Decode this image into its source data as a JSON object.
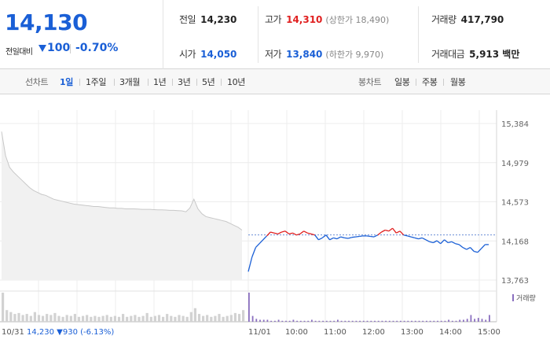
{
  "summary": {
    "price": "14,130",
    "change_label": "전일대비",
    "change_value": "100",
    "change_pct": "-0.70%"
  },
  "stats": {
    "prev_close": {
      "label": "전일",
      "value": "14,230"
    },
    "high": {
      "label": "고가",
      "value": "14,310",
      "sub": "(상한가 18,490)"
    },
    "volume": {
      "label": "거래량",
      "value": "417,790"
    },
    "open": {
      "label": "시가",
      "value": "14,050"
    },
    "low": {
      "label": "저가",
      "value": "13,840",
      "sub": "(하한가 9,970)"
    },
    "amount": {
      "label": "거래대금",
      "value": "5,913 백만"
    }
  },
  "tabs": {
    "line_label": "선차트",
    "line_items": [
      "1일",
      "1주일",
      "3개월",
      "1년",
      "3년",
      "5년",
      "10년"
    ],
    "candle_label": "봉차트",
    "candle_items": [
      "일봉",
      "주봉",
      "월봉"
    ]
  },
  "colors": {
    "up": "#e02020",
    "down": "#1a5fd6",
    "prev_day": "#c8c8c8"
  },
  "chart_data": {
    "type": "line",
    "y_ticks": [
      "15,384",
      "14,979",
      "14,573",
      "14,168",
      "13,763"
    ],
    "ylim": [
      13763,
      15384
    ],
    "reference_price": 14230,
    "prev_day_label": "10/31",
    "prev_day_note": "14,230 ▼930 (-6.13%)",
    "x_tick_labels": [
      "11/01",
      "10:00",
      "11:00",
      "12:00",
      "13:00",
      "14:00",
      "15:00"
    ],
    "volume_legend": "거래량",
    "prev_day_series": [
      15300,
      15050,
      14930,
      14880,
      14840,
      14800,
      14760,
      14720,
      14690,
      14670,
      14650,
      14640,
      14620,
      14600,
      14590,
      14580,
      14570,
      14560,
      14550,
      14545,
      14540,
      14535,
      14530,
      14525,
      14525,
      14520,
      14515,
      14510,
      14510,
      14505,
      14505,
      14500,
      14500,
      14500,
      14498,
      14495,
      14495,
      14495,
      14492,
      14490,
      14490,
      14488,
      14485,
      14485,
      14482,
      14480,
      14470,
      14510,
      14600,
      14500,
      14450,
      14420,
      14410,
      14400,
      14390,
      14380,
      14370,
      14350,
      14330,
      14310,
      14280
    ],
    "today_series": [
      13850,
      14000,
      14100,
      14140,
      14180,
      14220,
      14260,
      14250,
      14240,
      14260,
      14270,
      14240,
      14250,
      14230,
      14240,
      14270,
      14250,
      14240,
      14230,
      14180,
      14200,
      14230,
      14180,
      14200,
      14190,
      14210,
      14200,
      14195,
      14205,
      14210,
      14215,
      14220,
      14220,
      14215,
      14210,
      14230,
      14260,
      14280,
      14270,
      14300,
      14250,
      14270,
      14230,
      14220,
      14210,
      14200,
      14190,
      14200,
      14180,
      14160,
      14150,
      14170,
      14140,
      14180,
      14150,
      14160,
      14140,
      14130,
      14100,
      14080,
      14100,
      14060,
      14050,
      14090,
      14130,
      14130
    ],
    "prev_day_volume": [
      30,
      12,
      10,
      8,
      9,
      7,
      8,
      6,
      10,
      7,
      6,
      8,
      7,
      9,
      6,
      5,
      7,
      6,
      8,
      5,
      6,
      7,
      5,
      6,
      5,
      6,
      7,
      5,
      6,
      5,
      8,
      5,
      6,
      7,
      5,
      6,
      9,
      5,
      6,
      7,
      5,
      8,
      6,
      5,
      7,
      6,
      5,
      10,
      14,
      8,
      6,
      7,
      5,
      6,
      8,
      5,
      6,
      7,
      9,
      8,
      12
    ],
    "today_volume": [
      30,
      6,
      3,
      2,
      2,
      2,
      1,
      1,
      2,
      1,
      1,
      1,
      2,
      1,
      1,
      1,
      1,
      2,
      1,
      1,
      1,
      1,
      1,
      1,
      2,
      1,
      1,
      1,
      1,
      1,
      1,
      1,
      1,
      1,
      1,
      1,
      1,
      1,
      1,
      1,
      1,
      1,
      1,
      1,
      1,
      1,
      1,
      1,
      1,
      1,
      1,
      1,
      1,
      1,
      2,
      1,
      1,
      2,
      2,
      3,
      7,
      3,
      4,
      3,
      2,
      7
    ]
  }
}
